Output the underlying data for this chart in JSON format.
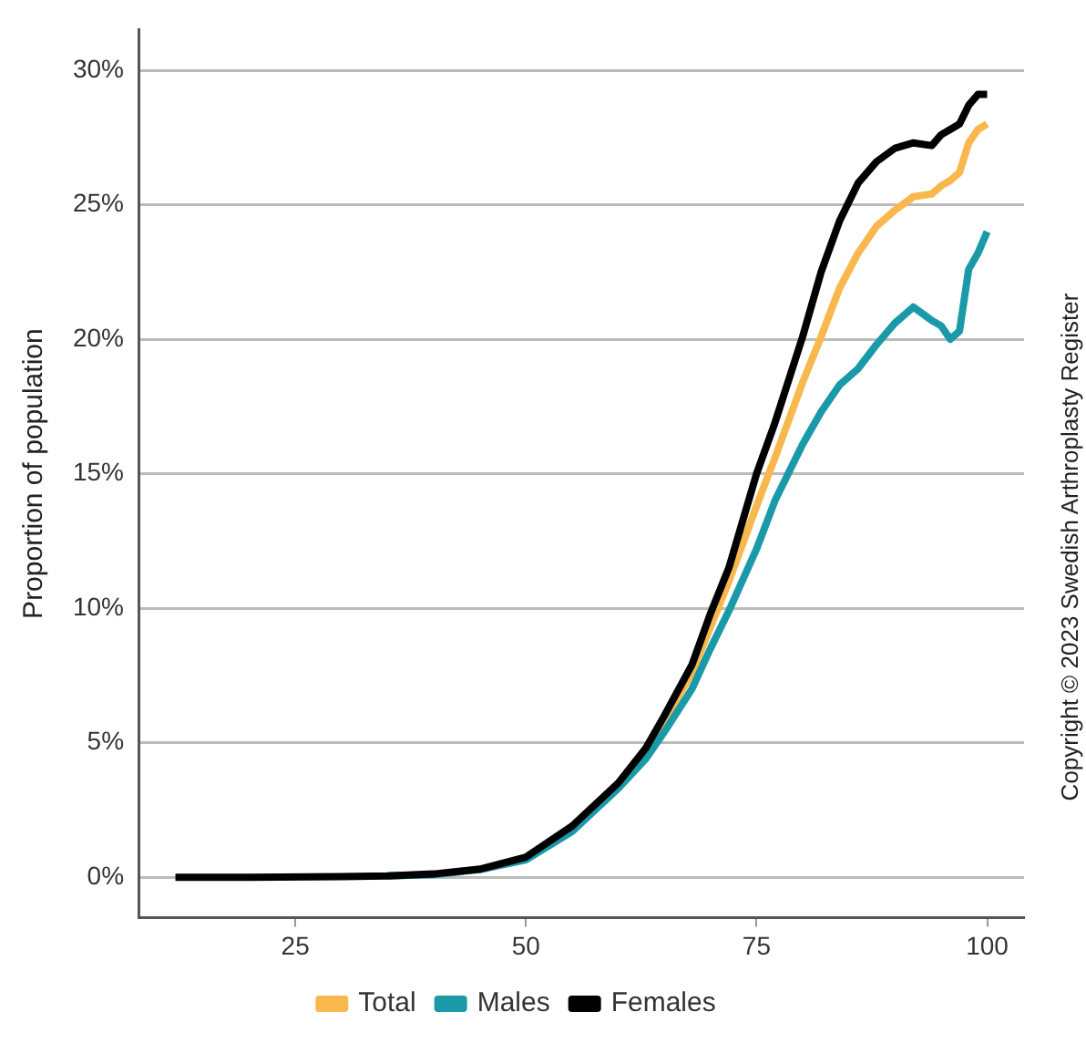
{
  "chart_data": {
    "type": "line",
    "ylabel": "Proportion of population",
    "x": [
      12,
      20,
      30,
      35,
      40,
      45,
      50,
      55,
      60,
      63,
      65,
      68,
      70,
      72,
      75,
      77,
      80,
      82,
      84,
      86,
      88,
      90,
      92,
      94,
      95,
      96,
      97,
      98,
      99,
      100
    ],
    "series": [
      {
        "name": "Total",
        "color": "#f8b84e",
        "values": [
          null,
          null,
          null,
          null,
          null,
          null,
          null,
          null,
          null,
          4.7,
          5.8,
          7.6,
          9.3,
          11.0,
          13.8,
          15.6,
          18.4,
          20.1,
          21.9,
          23.2,
          24.2,
          24.8,
          25.3,
          25.4,
          25.7,
          25.9,
          26.2,
          27.3,
          27.8,
          28.0
        ]
      },
      {
        "name": "Males",
        "color": "#1a9aa8",
        "values": [
          null,
          null,
          null,
          0.05,
          0.1,
          0.28,
          0.65,
          1.7,
          3.3,
          4.4,
          5.4,
          7.0,
          8.5,
          9.9,
          12.2,
          14.0,
          16.1,
          17.3,
          18.3,
          18.9,
          19.8,
          20.6,
          21.2,
          20.7,
          20.5,
          20.0,
          20.3,
          22.6,
          23.2,
          24.0
        ]
      },
      {
        "name": "Females",
        "color": "#000000",
        "values": [
          0,
          0,
          0.02,
          0.05,
          0.12,
          0.3,
          0.75,
          1.9,
          3.5,
          4.8,
          6.0,
          7.9,
          9.8,
          11.5,
          15.0,
          16.9,
          20.1,
          22.5,
          24.4,
          25.8,
          26.6,
          27.1,
          27.3,
          27.2,
          27.6,
          27.8,
          28.0,
          28.7,
          29.1,
          29.1
        ]
      }
    ],
    "xlim": [
      8,
      104
    ],
    "xticks": [
      25,
      50,
      75,
      100
    ],
    "ylim": [
      -1.5,
      31.5
    ],
    "yticks": [
      {
        "value": 0,
        "label": "0%"
      },
      {
        "value": 5,
        "label": "5%"
      },
      {
        "value": 10,
        "label": "10%"
      },
      {
        "value": 15,
        "label": "15%"
      },
      {
        "value": 20,
        "label": "20%"
      },
      {
        "value": 25,
        "label": "25%"
      },
      {
        "value": 30,
        "label": "30%"
      }
    ],
    "grid": "y",
    "legend": "bottom",
    "marker": "none",
    "line_style": "solid",
    "annotations": [
      "Copyright © 2023 Swedish Arthroplasty Register"
    ]
  }
}
